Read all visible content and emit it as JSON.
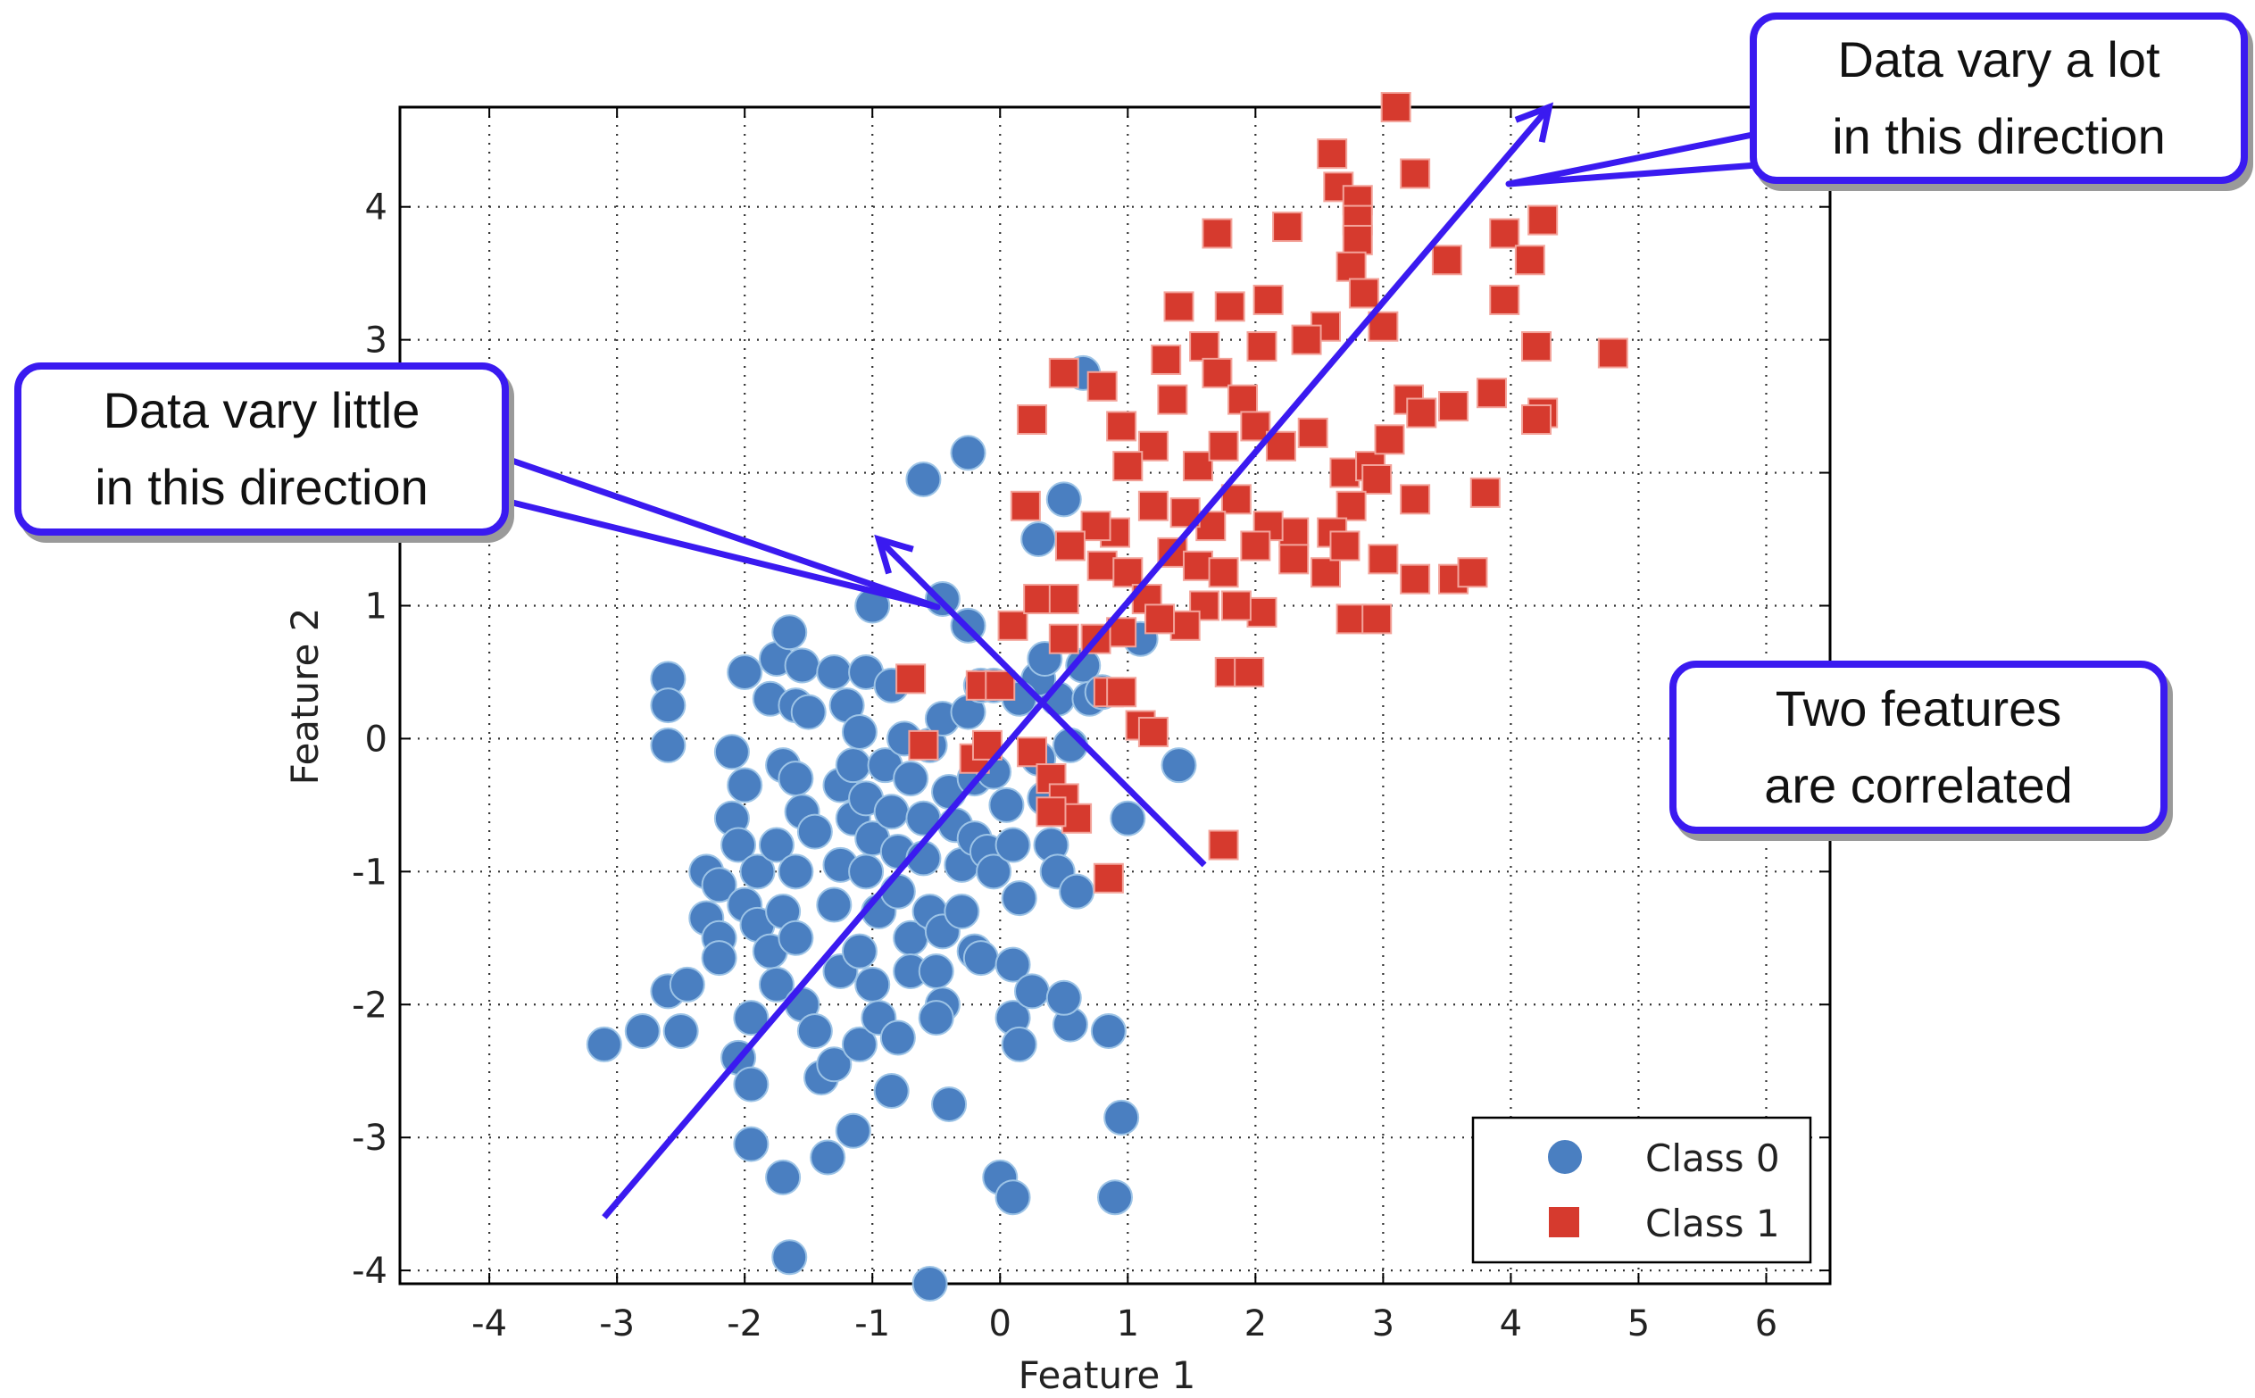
{
  "chart_data": {
    "type": "scatter",
    "xlabel": "Feature 1",
    "ylabel": "Feature 2",
    "xlim": [
      -4.7,
      6.5
    ],
    "ylim": [
      -4.1,
      4.75
    ],
    "x_ticks": [
      -4,
      -3,
      -2,
      -1,
      0,
      1,
      2,
      3,
      4,
      5,
      6
    ],
    "y_ticks": [
      -4,
      -3,
      -2,
      -1,
      0,
      1,
      2,
      3,
      4
    ],
    "grid": true,
    "legend_position": "bottom-right",
    "series": [
      {
        "name": "Class 0",
        "marker": "circle",
        "color": "#4a7fc1",
        "points": [
          [
            -3.1,
            -2.3
          ],
          [
            -2.8,
            -2.2
          ],
          [
            -2.6,
            -1.9
          ],
          [
            -2.5,
            -2.2
          ],
          [
            -2.45,
            -1.85
          ],
          [
            -2.6,
            0.45
          ],
          [
            -2.6,
            0.25
          ],
          [
            -2.6,
            -0.05
          ],
          [
            -2.3,
            -1.0
          ],
          [
            -2.3,
            -1.35
          ],
          [
            -2.2,
            -1.1
          ],
          [
            -2.2,
            -1.5
          ],
          [
            -2.2,
            -1.65
          ],
          [
            -2.1,
            -0.6
          ],
          [
            -2.05,
            -0.8
          ],
          [
            -2.1,
            -0.1
          ],
          [
            -2.0,
            -0.35
          ],
          [
            -2.0,
            -1.25
          ],
          [
            -1.9,
            -1.0
          ],
          [
            -1.9,
            -1.4
          ],
          [
            -1.95,
            -2.1
          ],
          [
            -2.05,
            -2.4
          ],
          [
            -1.95,
            -2.6
          ],
          [
            -1.95,
            -3.05
          ],
          [
            -1.7,
            -3.3
          ],
          [
            -1.65,
            -3.9
          ],
          [
            -2.0,
            0.5
          ],
          [
            -1.8,
            0.3
          ],
          [
            -1.75,
            0.6
          ],
          [
            -1.65,
            0.8
          ],
          [
            -1.55,
            0.55
          ],
          [
            -1.6,
            0.25
          ],
          [
            -1.5,
            0.2
          ],
          [
            -1.7,
            -0.2
          ],
          [
            -1.6,
            -0.3
          ],
          [
            -1.55,
            -0.55
          ],
          [
            -1.45,
            -0.7
          ],
          [
            -1.75,
            -0.8
          ],
          [
            -1.6,
            -1.0
          ],
          [
            -1.7,
            -1.3
          ],
          [
            -1.8,
            -1.6
          ],
          [
            -1.6,
            -1.5
          ],
          [
            -1.75,
            -1.85
          ],
          [
            -1.55,
            -2.0
          ],
          [
            -1.45,
            -2.2
          ],
          [
            -1.4,
            -2.55
          ],
          [
            -1.3,
            -2.45
          ],
          [
            -1.35,
            -3.15
          ],
          [
            -1.15,
            -2.95
          ],
          [
            -1.25,
            -1.75
          ],
          [
            -1.3,
            -1.25
          ],
          [
            -1.25,
            -0.95
          ],
          [
            -1.15,
            -0.6
          ],
          [
            -1.25,
            -0.35
          ],
          [
            -1.15,
            -0.2
          ],
          [
            -1.2,
            0.25
          ],
          [
            -1.3,
            0.5
          ],
          [
            -1.05,
            0.5
          ],
          [
            -1.1,
            0.05
          ],
          [
            -1.05,
            -0.45
          ],
          [
            -1.0,
            -0.75
          ],
          [
            -1.05,
            -1.0
          ],
          [
            -0.95,
            -1.3
          ],
          [
            -1.1,
            -1.6
          ],
          [
            -1.0,
            -1.85
          ],
          [
            -1.1,
            -2.3
          ],
          [
            -0.95,
            -2.1
          ],
          [
            -0.85,
            -2.65
          ],
          [
            -0.8,
            -2.25
          ],
          [
            -0.9,
            -0.2
          ],
          [
            -0.85,
            0.4
          ],
          [
            -0.85,
            -0.55
          ],
          [
            -0.8,
            -0.85
          ],
          [
            -0.8,
            -1.15
          ],
          [
            -0.7,
            -1.5
          ],
          [
            -0.7,
            -1.75
          ],
          [
            -0.75,
            0.0
          ],
          [
            -0.7,
            -0.3
          ],
          [
            -0.6,
            -0.6
          ],
          [
            -0.6,
            -0.9
          ],
          [
            -0.55,
            -1.3
          ],
          [
            -0.45,
            -1.45
          ],
          [
            -0.5,
            -1.75
          ],
          [
            -0.45,
            -2.0
          ],
          [
            -0.5,
            -2.1
          ],
          [
            -0.4,
            -2.75
          ],
          [
            -0.55,
            -0.05
          ],
          [
            -0.45,
            0.15
          ],
          [
            -0.4,
            -0.4
          ],
          [
            -0.35,
            -0.65
          ],
          [
            -0.3,
            -0.95
          ],
          [
            -0.3,
            -1.3
          ],
          [
            -0.2,
            -1.6
          ],
          [
            -0.15,
            -1.65
          ],
          [
            -0.2,
            -0.3
          ],
          [
            -0.2,
            -0.75
          ],
          [
            -0.1,
            -0.85
          ],
          [
            -0.05,
            -1.0
          ],
          [
            -0.25,
            0.2
          ],
          [
            -0.15,
            0.4
          ],
          [
            -0.05,
            -0.25
          ],
          [
            0.05,
            -0.5
          ],
          [
            0.1,
            -0.8
          ],
          [
            0.15,
            -1.2
          ],
          [
            0.1,
            -1.7
          ],
          [
            0.1,
            -2.1
          ],
          [
            0.15,
            -2.3
          ],
          [
            0.0,
            -3.3
          ],
          [
            0.1,
            -3.45
          ],
          [
            0.25,
            -1.9
          ],
          [
            0.3,
            -0.15
          ],
          [
            0.35,
            -0.45
          ],
          [
            0.4,
            -0.8
          ],
          [
            0.45,
            0.3
          ],
          [
            0.3,
            0.45
          ],
          [
            0.35,
            0.6
          ],
          [
            0.45,
            -1.0
          ],
          [
            0.55,
            -2.15
          ],
          [
            0.5,
            -1.95
          ],
          [
            0.6,
            -1.15
          ],
          [
            0.55,
            -0.05
          ],
          [
            0.65,
            0.55
          ],
          [
            0.7,
            0.3
          ],
          [
            0.8,
            0.35
          ],
          [
            0.85,
            -2.2
          ],
          [
            0.9,
            -3.45
          ],
          [
            0.95,
            -2.85
          ],
          [
            1.0,
            -0.6
          ],
          [
            1.1,
            0.75
          ],
          [
            1.4,
            -0.2
          ],
          [
            0.3,
            1.5
          ],
          [
            0.5,
            1.8
          ],
          [
            0.65,
            2.75
          ],
          [
            -0.25,
            2.15
          ],
          [
            -0.6,
            1.95
          ],
          [
            -0.45,
            1.05
          ],
          [
            -1.0,
            1.0
          ],
          [
            -0.25,
            0.85
          ],
          [
            -0.05,
            0.4
          ],
          [
            0.15,
            0.3
          ],
          [
            -0.55,
            -4.1
          ]
        ]
      },
      {
        "name": "Class 1",
        "marker": "square",
        "color": "#d63a2e",
        "points": [
          [
            3.1,
            4.75
          ],
          [
            2.6,
            4.4
          ],
          [
            3.25,
            4.25
          ],
          [
            2.65,
            4.15
          ],
          [
            2.8,
            4.05
          ],
          [
            2.8,
            3.9
          ],
          [
            2.8,
            3.75
          ],
          [
            1.7,
            3.8
          ],
          [
            2.25,
            3.85
          ],
          [
            3.95,
            3.8
          ],
          [
            4.25,
            3.9
          ],
          [
            4.15,
            3.6
          ],
          [
            3.5,
            3.6
          ],
          [
            2.75,
            3.55
          ],
          [
            2.85,
            3.35
          ],
          [
            3.0,
            3.1
          ],
          [
            2.55,
            3.1
          ],
          [
            2.4,
            3.0
          ],
          [
            2.1,
            3.3
          ],
          [
            1.8,
            3.25
          ],
          [
            1.4,
            3.25
          ],
          [
            2.05,
            2.95
          ],
          [
            1.6,
            2.95
          ],
          [
            1.7,
            2.75
          ],
          [
            1.9,
            2.55
          ],
          [
            1.35,
            2.55
          ],
          [
            1.3,
            2.85
          ],
          [
            0.8,
            2.65
          ],
          [
            0.5,
            2.75
          ],
          [
            0.25,
            2.4
          ],
          [
            0.95,
            2.35
          ],
          [
            1.2,
            2.2
          ],
          [
            1.0,
            2.05
          ],
          [
            1.55,
            2.05
          ],
          [
            1.75,
            2.2
          ],
          [
            2.0,
            2.35
          ],
          [
            2.2,
            2.2
          ],
          [
            2.45,
            2.3
          ],
          [
            2.7,
            2.0
          ],
          [
            2.9,
            2.05
          ],
          [
            3.05,
            2.25
          ],
          [
            3.2,
            2.55
          ],
          [
            3.3,
            2.45
          ],
          [
            3.55,
            2.5
          ],
          [
            3.85,
            2.6
          ],
          [
            4.2,
            2.95
          ],
          [
            4.25,
            2.45
          ],
          [
            4.2,
            2.4
          ],
          [
            4.8,
            2.9
          ],
          [
            3.95,
            3.3
          ],
          [
            3.8,
            1.85
          ],
          [
            3.25,
            1.8
          ],
          [
            2.95,
            1.95
          ],
          [
            2.75,
            1.75
          ],
          [
            2.6,
            1.55
          ],
          [
            2.3,
            1.55
          ],
          [
            2.1,
            1.6
          ],
          [
            1.85,
            1.8
          ],
          [
            1.65,
            1.6
          ],
          [
            1.45,
            1.7
          ],
          [
            1.2,
            1.75
          ],
          [
            0.9,
            1.55
          ],
          [
            0.75,
            1.6
          ],
          [
            0.55,
            1.45
          ],
          [
            0.2,
            1.75
          ],
          [
            0.8,
            1.3
          ],
          [
            1.0,
            1.25
          ],
          [
            1.15,
            1.05
          ],
          [
            1.35,
            1.4
          ],
          [
            1.55,
            1.3
          ],
          [
            1.75,
            1.25
          ],
          [
            2.0,
            1.45
          ],
          [
            2.3,
            1.35
          ],
          [
            2.55,
            1.25
          ],
          [
            2.7,
            1.45
          ],
          [
            3.0,
            1.35
          ],
          [
            3.25,
            1.2
          ],
          [
            3.55,
            1.2
          ],
          [
            3.7,
            1.25
          ],
          [
            2.75,
            0.9
          ],
          [
            2.95,
            0.9
          ],
          [
            2.05,
            0.95
          ],
          [
            1.85,
            1.0
          ],
          [
            1.6,
            1.0
          ],
          [
            1.45,
            0.85
          ],
          [
            1.25,
            0.9
          ],
          [
            0.95,
            0.8
          ],
          [
            0.75,
            0.75
          ],
          [
            0.5,
            0.75
          ],
          [
            0.1,
            0.85
          ],
          [
            0.3,
            1.05
          ],
          [
            0.5,
            1.05
          ],
          [
            1.8,
            0.5
          ],
          [
            1.95,
            0.5
          ],
          [
            0.85,
            0.35
          ],
          [
            0.95,
            0.35
          ],
          [
            1.1,
            0.1
          ],
          [
            1.2,
            0.05
          ],
          [
            -0.7,
            0.45
          ],
          [
            -0.15,
            0.4
          ],
          [
            0.0,
            0.4
          ],
          [
            0.25,
            -0.1
          ],
          [
            -0.2,
            -0.15
          ],
          [
            -0.1,
            -0.05
          ],
          [
            -0.6,
            -0.05
          ],
          [
            0.4,
            -0.3
          ],
          [
            0.5,
            -0.45
          ],
          [
            0.6,
            -0.6
          ],
          [
            0.4,
            -0.55
          ],
          [
            0.85,
            -1.05
          ],
          [
            1.75,
            -0.8
          ]
        ]
      }
    ],
    "annotations": [
      {
        "kind": "arrow",
        "color": "#3a1af0",
        "from": [
          -3.1,
          -3.6
        ],
        "to": [
          4.3,
          4.75
        ]
      },
      {
        "kind": "arrow",
        "color": "#3a1af0",
        "from": [
          1.6,
          -0.95
        ],
        "to": [
          -0.95,
          1.5
        ]
      }
    ]
  },
  "callouts": {
    "high_variance": {
      "line1": "Data vary a lot",
      "line2": "in this direction"
    },
    "low_variance": {
      "line1": "Data vary little",
      "line2": "in this direction"
    },
    "correlated": {
      "line1": "Two features",
      "line2": "are correlated"
    }
  }
}
